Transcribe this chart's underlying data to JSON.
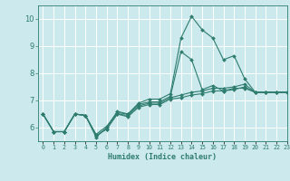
{
  "xlabel": "Humidex (Indice chaleur)",
  "bg_color": "#cce9ed",
  "grid_color": "#ffffff",
  "line_color": "#2e7d6e",
  "xlim": [
    -0.5,
    23
  ],
  "ylim": [
    5.5,
    10.5
  ],
  "yticks": [
    6,
    7,
    8,
    9,
    10
  ],
  "xticks": [
    0,
    1,
    2,
    3,
    4,
    5,
    6,
    7,
    8,
    9,
    10,
    11,
    12,
    13,
    14,
    15,
    16,
    17,
    18,
    19,
    20,
    21,
    22,
    23
  ],
  "series": [
    [
      6.5,
      5.85,
      5.85,
      6.5,
      6.45,
      5.65,
      6.0,
      6.6,
      6.5,
      6.9,
      7.05,
      7.05,
      7.25,
      9.3,
      10.1,
      9.6,
      9.3,
      8.5,
      8.65,
      7.8,
      7.3,
      7.3,
      7.3,
      7.3
    ],
    [
      6.5,
      5.85,
      5.85,
      6.5,
      6.45,
      5.75,
      6.05,
      6.55,
      6.5,
      6.85,
      6.95,
      6.95,
      7.15,
      8.8,
      8.5,
      7.4,
      7.55,
      7.35,
      7.45,
      7.45,
      7.3,
      7.3,
      7.3,
      7.3
    ],
    [
      6.5,
      5.85,
      5.85,
      6.5,
      6.45,
      5.7,
      5.95,
      6.5,
      6.45,
      6.8,
      6.9,
      6.9,
      7.1,
      7.2,
      7.3,
      7.35,
      7.45,
      7.45,
      7.5,
      7.6,
      7.3,
      7.3,
      7.3,
      7.3
    ],
    [
      6.5,
      5.85,
      5.85,
      6.5,
      6.45,
      5.7,
      5.95,
      6.5,
      6.4,
      6.75,
      6.85,
      6.85,
      7.05,
      7.1,
      7.2,
      7.25,
      7.35,
      7.35,
      7.4,
      7.5,
      7.3,
      7.3,
      7.3,
      7.3
    ]
  ]
}
